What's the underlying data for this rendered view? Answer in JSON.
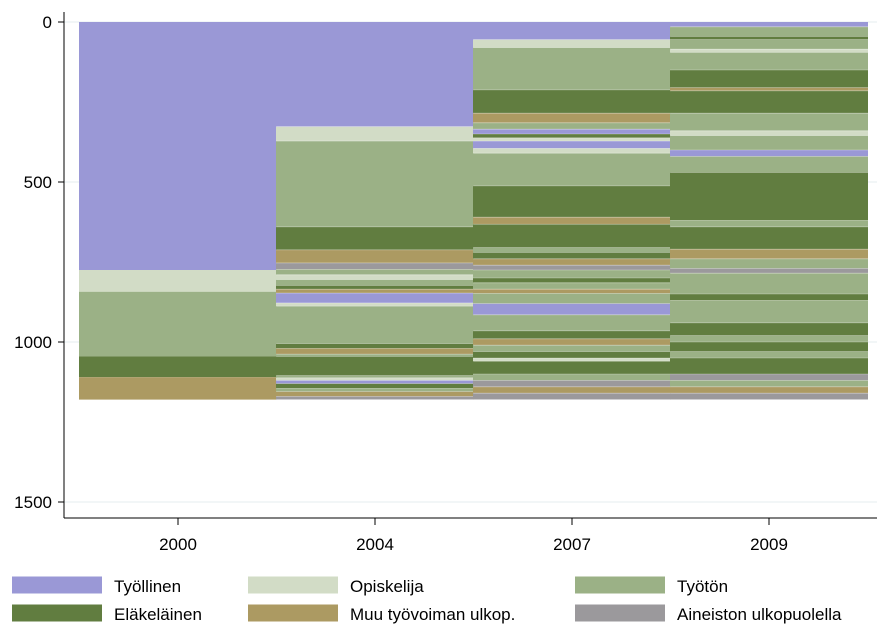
{
  "chart_data": {
    "type": "bar",
    "subtype": "stacked-sequence",
    "title": "",
    "xlabel": "",
    "ylabel": "",
    "y_axis_reversed": true,
    "ylim": [
      0,
      1500
    ],
    "yticks": [
      0,
      500,
      1000,
      1500
    ],
    "grid": true,
    "legend_position": "bottom",
    "categories": [
      "2000",
      "2004",
      "2007",
      "2009"
    ],
    "states": [
      {
        "name": "Työllinen",
        "color": "#9a98d6"
      },
      {
        "name": "Opiskelija",
        "color": "#d2dcc6"
      },
      {
        "name": "Työtön",
        "color": "#9bb186"
      },
      {
        "name": "Eläkeläinen",
        "color": "#617d40"
      },
      {
        "name": "Muu työvoiman ulkop.",
        "color": "#ac9a62"
      },
      {
        "name": "Aineiston ulkopuolella",
        "color": "#9b999c"
      }
    ],
    "series": [
      {
        "category": "2000",
        "segments": [
          {
            "state": "Työllinen",
            "start": 0,
            "end": 775
          },
          {
            "state": "Opiskelija",
            "start": 775,
            "end": 843
          },
          {
            "state": "Työtön",
            "start": 843,
            "end": 1045
          },
          {
            "state": "Eläkeläinen",
            "start": 1045,
            "end": 1110
          },
          {
            "state": "Muu työvoiman ulkop.",
            "start": 1110,
            "end": 1180
          }
        ]
      },
      {
        "category": "2004",
        "segments": [
          {
            "state": "Työllinen",
            "start": 0,
            "end": 327
          },
          {
            "state": "Opiskelija",
            "start": 327,
            "end": 372
          },
          {
            "state": "Työtön",
            "start": 372,
            "end": 640
          },
          {
            "state": "Eläkeläinen",
            "start": 640,
            "end": 712
          },
          {
            "state": "Muu työvoiman ulkop.",
            "start": 712,
            "end": 753
          },
          {
            "state": "Aineiston ulkopuolella",
            "start": 753,
            "end": 773
          },
          {
            "state": "Työtön",
            "start": 773,
            "end": 790
          },
          {
            "state": "Opiskelija",
            "start": 790,
            "end": 805
          },
          {
            "state": "Työtön",
            "start": 805,
            "end": 823
          },
          {
            "state": "Eläkeläinen",
            "start": 823,
            "end": 835
          },
          {
            "state": "Muu työvoiman ulkop.",
            "start": 835,
            "end": 847
          },
          {
            "state": "Työllinen",
            "start": 847,
            "end": 878
          },
          {
            "state": "Opiskelija",
            "start": 878,
            "end": 888
          },
          {
            "state": "Työtön",
            "start": 888,
            "end": 1005
          },
          {
            "state": "Eläkeläinen",
            "start": 1005,
            "end": 1020
          },
          {
            "state": "Muu työvoiman ulkop.",
            "start": 1020,
            "end": 1038
          },
          {
            "state": "Työtön",
            "start": 1038,
            "end": 1045
          },
          {
            "state": "Eläkeläinen",
            "start": 1045,
            "end": 1105
          },
          {
            "state": "Työtön",
            "start": 1105,
            "end": 1112
          },
          {
            "state": "Opiskelija",
            "start": 1112,
            "end": 1120
          },
          {
            "state": "Työllinen",
            "start": 1120,
            "end": 1130
          },
          {
            "state": "Eläkeläinen",
            "start": 1130,
            "end": 1145
          },
          {
            "state": "Työtön",
            "start": 1145,
            "end": 1155
          },
          {
            "state": "Muu työvoiman ulkop.",
            "start": 1155,
            "end": 1170
          },
          {
            "state": "Aineiston ulkopuolella",
            "start": 1170,
            "end": 1180
          }
        ]
      },
      {
        "category": "2007",
        "segments": [
          {
            "state": "Työllinen",
            "start": 0,
            "end": 55
          },
          {
            "state": "Opiskelija",
            "start": 55,
            "end": 80
          },
          {
            "state": "Työtön",
            "start": 80,
            "end": 212
          },
          {
            "state": "Eläkeläinen",
            "start": 212,
            "end": 285
          },
          {
            "state": "Muu työvoiman ulkop.",
            "start": 285,
            "end": 315
          },
          {
            "state": "Työtön",
            "start": 315,
            "end": 335
          },
          {
            "state": "Työllinen",
            "start": 335,
            "end": 350
          },
          {
            "state": "Eläkeläinen",
            "start": 350,
            "end": 362
          },
          {
            "state": "Opiskelija",
            "start": 362,
            "end": 372
          },
          {
            "state": "Työllinen",
            "start": 372,
            "end": 395
          },
          {
            "state": "Opiskelija",
            "start": 395,
            "end": 410
          },
          {
            "state": "Työtön",
            "start": 410,
            "end": 512
          },
          {
            "state": "Eläkeläinen",
            "start": 512,
            "end": 610
          },
          {
            "state": "Muu työvoiman ulkop.",
            "start": 610,
            "end": 632
          },
          {
            "state": "Eläkeläinen",
            "start": 632,
            "end": 705
          },
          {
            "state": "Työtön",
            "start": 705,
            "end": 720
          },
          {
            "state": "Eläkeläinen",
            "start": 720,
            "end": 740
          },
          {
            "state": "Muu työvoiman ulkop.",
            "start": 740,
            "end": 760
          },
          {
            "state": "Aineiston ulkopuolella",
            "start": 760,
            "end": 775
          },
          {
            "state": "Työtön",
            "start": 775,
            "end": 800
          },
          {
            "state": "Eläkeläinen",
            "start": 800,
            "end": 815
          },
          {
            "state": "Työtön",
            "start": 815,
            "end": 835
          },
          {
            "state": "Muu työvoiman ulkop.",
            "start": 835,
            "end": 848
          },
          {
            "state": "Työtön",
            "start": 848,
            "end": 880
          },
          {
            "state": "Työllinen",
            "start": 880,
            "end": 915
          },
          {
            "state": "Työtön",
            "start": 915,
            "end": 965
          },
          {
            "state": "Eläkeläinen",
            "start": 965,
            "end": 990
          },
          {
            "state": "Muu työvoiman ulkop.",
            "start": 990,
            "end": 1010
          },
          {
            "state": "Työtön",
            "start": 1010,
            "end": 1030
          },
          {
            "state": "Eläkeläinen",
            "start": 1030,
            "end": 1050
          },
          {
            "state": "Opiskelija",
            "start": 1050,
            "end": 1060
          },
          {
            "state": "Eläkeläinen",
            "start": 1060,
            "end": 1100
          },
          {
            "state": "Työtön",
            "start": 1100,
            "end": 1120
          },
          {
            "state": "Aineiston ulkopuolella",
            "start": 1120,
            "end": 1140
          },
          {
            "state": "Muu työvoiman ulkop.",
            "start": 1140,
            "end": 1160
          },
          {
            "state": "Aineiston ulkopuolella",
            "start": 1160,
            "end": 1180
          }
        ]
      },
      {
        "category": "2009",
        "segments": [
          {
            "state": "Työllinen",
            "start": 0,
            "end": 15
          },
          {
            "state": "Työtön",
            "start": 15,
            "end": 45
          },
          {
            "state": "Eläkeläinen",
            "start": 45,
            "end": 55
          },
          {
            "state": "Työtön",
            "start": 55,
            "end": 85
          },
          {
            "state": "Opiskelija",
            "start": 85,
            "end": 95
          },
          {
            "state": "Työtön",
            "start": 95,
            "end": 150
          },
          {
            "state": "Eläkeläinen",
            "start": 150,
            "end": 205
          },
          {
            "state": "Muu työvoiman ulkop.",
            "start": 205,
            "end": 215
          },
          {
            "state": "Eläkeläinen",
            "start": 215,
            "end": 285
          },
          {
            "state": "Työtön",
            "start": 285,
            "end": 340
          },
          {
            "state": "Opiskelija",
            "start": 340,
            "end": 355
          },
          {
            "state": "Työtön",
            "start": 355,
            "end": 400
          },
          {
            "state": "Työllinen",
            "start": 400,
            "end": 420
          },
          {
            "state": "Työtön",
            "start": 420,
            "end": 470
          },
          {
            "state": "Eläkeläinen",
            "start": 470,
            "end": 620
          },
          {
            "state": "Työtön",
            "start": 620,
            "end": 640
          },
          {
            "state": "Eläkeläinen",
            "start": 640,
            "end": 710
          },
          {
            "state": "Muu työvoiman ulkop.",
            "start": 710,
            "end": 740
          },
          {
            "state": "Työtön",
            "start": 740,
            "end": 770
          },
          {
            "state": "Aineiston ulkopuolella",
            "start": 770,
            "end": 785
          },
          {
            "state": "Työtön",
            "start": 785,
            "end": 850
          },
          {
            "state": "Eläkeläinen",
            "start": 850,
            "end": 870
          },
          {
            "state": "Työtön",
            "start": 870,
            "end": 940
          },
          {
            "state": "Eläkeläinen",
            "start": 940,
            "end": 980
          },
          {
            "state": "Työtön",
            "start": 980,
            "end": 1000
          },
          {
            "state": "Eläkeläinen",
            "start": 1000,
            "end": 1030
          },
          {
            "state": "Työtön",
            "start": 1030,
            "end": 1050
          },
          {
            "state": "Eläkeläinen",
            "start": 1050,
            "end": 1100
          },
          {
            "state": "Aineiston ulkopuolella",
            "start": 1100,
            "end": 1120
          },
          {
            "state": "Työtön",
            "start": 1120,
            "end": 1140
          },
          {
            "state": "Muu työvoiman ulkop.",
            "start": 1140,
            "end": 1160
          },
          {
            "state": "Aineiston ulkopuolella",
            "start": 1160,
            "end": 1180
          }
        ]
      }
    ]
  }
}
